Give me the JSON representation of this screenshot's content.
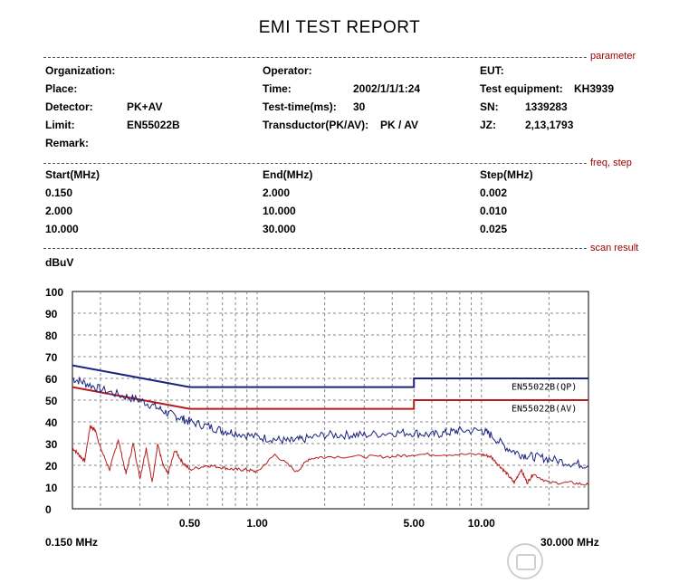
{
  "title": "EMI TEST REPORT",
  "sections": {
    "parameter": "parameter",
    "freq_step": "freq, step",
    "scan_result": "scan result"
  },
  "params": {
    "organization_label": "Organization:",
    "place_label": "Place:",
    "detector_label": "Detector:",
    "detector_value": "PK+AV",
    "limit_label": "Limit:",
    "limit_value": "EN55022B",
    "remark_label": "Remark:",
    "operator_label": "Operator:",
    "time_label": "Time:",
    "time_value": "2002/1/1/1:24",
    "test_time_label": "Test-time(ms):",
    "test_time_value": "30",
    "transductor_label": "Transductor(PK/AV):",
    "transductor_value": "PK  /  AV",
    "eut_label": "EUT:",
    "equipment_label": "Test equipment:",
    "equipment_value": "KH3939",
    "sn_label": "SN:",
    "sn_value": "1339283",
    "jz_label": "JZ:",
    "jz_value": "2,13,1793"
  },
  "freq_table": {
    "headers": [
      "Start(MHz)",
      "End(MHz)",
      "Step(MHz)"
    ],
    "rows": [
      [
        "0.150",
        "2.000",
        "0.002"
      ],
      [
        "2.000",
        "10.000",
        "0.010"
      ],
      [
        "10.000",
        "30.000",
        "0.025"
      ]
    ]
  },
  "chart_data": {
    "type": "line",
    "ylabel": "dBuV",
    "ylim": [
      0,
      100
    ],
    "yticks": [
      "100",
      "90",
      "80",
      "70",
      "60",
      "50",
      "40",
      "30",
      "20",
      "10",
      "0"
    ],
    "xscale": "log",
    "xlim": [
      0.15,
      30
    ],
    "xtick_labels": [
      {
        "value": 0.5,
        "label": "0.50"
      },
      {
        "value": 1,
        "label": "1.00"
      },
      {
        "value": 5,
        "label": "5.00"
      },
      {
        "value": 10,
        "label": "10.00"
      }
    ],
    "x_start_label": "0.150 MHz",
    "x_end_label": "30.000 MHz",
    "grid": true,
    "colors": {
      "qp_limit": "#1a237e",
      "av_limit": "#b71c1c",
      "pk_trace": "#1a237e",
      "av_trace": "#b71c1c",
      "grid": "#888888"
    },
    "series": [
      {
        "name": "EN55022B(QP)",
        "x": [
          0.15,
          0.5,
          5,
          5,
          30
        ],
        "y": [
          66,
          56,
          56,
          60,
          60
        ]
      },
      {
        "name": "EN55022B(AV)",
        "x": [
          0.15,
          0.5,
          5,
          5,
          30
        ],
        "y": [
          56,
          46,
          46,
          50,
          50
        ]
      },
      {
        "name": "",
        "x": [
          0.15,
          0.17,
          0.2,
          0.25,
          0.3,
          0.35,
          0.4,
          0.45,
          0.5,
          0.6,
          0.7,
          0.8,
          1.0,
          1.2,
          1.4,
          1.6,
          2.0,
          2.5,
          3.0,
          4.0,
          5.0,
          6.0,
          7.0,
          8.0,
          10.0,
          11.0,
          13.0,
          15.0,
          17.0,
          20.0,
          25.0,
          30.0
        ],
        "y": [
          60,
          58,
          55,
          52,
          50,
          47,
          44,
          42,
          40,
          38,
          36,
          35,
          33,
          32,
          31,
          32,
          34,
          34,
          34,
          35,
          35,
          34,
          35,
          36,
          36,
          34,
          28,
          25,
          24,
          23,
          21,
          20
        ]
      },
      {
        "name": "",
        "x": [
          0.15,
          0.16,
          0.17,
          0.18,
          0.19,
          0.2,
          0.22,
          0.24,
          0.26,
          0.28,
          0.3,
          0.32,
          0.34,
          0.36,
          0.38,
          0.4,
          0.43,
          0.46,
          0.5,
          0.6,
          0.7,
          0.8,
          0.9,
          1.0,
          1.2,
          1.5,
          1.7,
          2.0,
          3.0,
          4.0,
          5.0,
          7.0,
          10.0,
          11.0,
          12.0,
          13.0,
          14.0,
          15.0,
          16.0,
          17.0,
          20.0,
          25.0,
          30.0
        ],
        "y": [
          28,
          25,
          22,
          38,
          36,
          28,
          18,
          32,
          16,
          30,
          14,
          28,
          12,
          30,
          20,
          16,
          27,
          22,
          18,
          20,
          19,
          18,
          18,
          17,
          25,
          17,
          23,
          24,
          24,
          24,
          25,
          25,
          25,
          24,
          20,
          16,
          12,
          18,
          12,
          16,
          12,
          12,
          11
        ]
      }
    ]
  }
}
